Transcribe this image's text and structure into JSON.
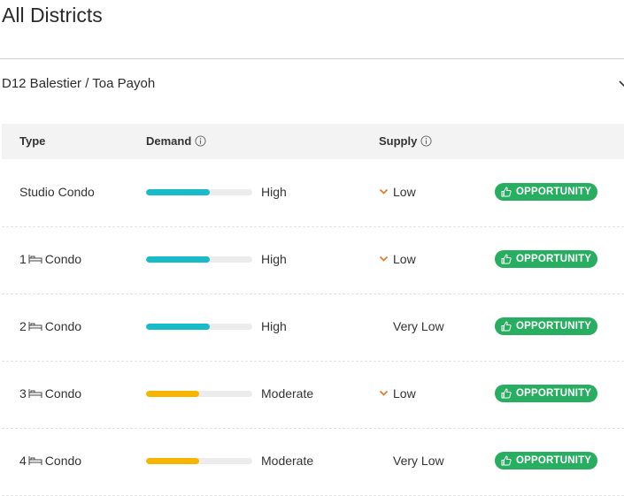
{
  "page": {
    "title": "All Districts"
  },
  "district": {
    "name": "D12 Balestier / Toa Payoh"
  },
  "table": {
    "headers": {
      "type": "Type",
      "demand": "Demand",
      "supply": "Supply"
    },
    "rows": [
      {
        "type_prefix": "",
        "type_label": "Studio Condo",
        "bed_icon": false,
        "demand_level": 0.6,
        "demand_color": "#18bcc8",
        "demand_label": "High",
        "supply_arrow": true,
        "supply_label": "Low",
        "badge": "OPPORTUNITY"
      },
      {
        "type_prefix": "1",
        "type_label": "Condo",
        "bed_icon": true,
        "demand_level": 0.6,
        "demand_color": "#18bcc8",
        "demand_label": "High",
        "supply_arrow": true,
        "supply_label": "Low",
        "badge": "OPPORTUNITY"
      },
      {
        "type_prefix": "2",
        "type_label": "Condo",
        "bed_icon": true,
        "demand_level": 0.6,
        "demand_color": "#18bcc8",
        "demand_label": "High",
        "supply_arrow": false,
        "supply_label": "Very Low",
        "badge": "OPPORTUNITY"
      },
      {
        "type_prefix": "3",
        "type_label": "Condo",
        "bed_icon": true,
        "demand_level": 0.5,
        "demand_color": "#f7b500",
        "demand_label": "Moderate",
        "supply_arrow": true,
        "supply_label": "Low",
        "badge": "OPPORTUNITY"
      },
      {
        "type_prefix": "4",
        "type_label": "Condo",
        "bed_icon": true,
        "demand_level": 0.5,
        "demand_color": "#f7b500",
        "demand_label": "Moderate",
        "supply_arrow": false,
        "supply_label": "Very Low",
        "badge": "OPPORTUNITY"
      }
    ]
  },
  "colors": {
    "badge": "#27ae60",
    "supply_arrow": "#e8741c",
    "bar_track": "#ececec"
  },
  "icons": {
    "info": "info-icon",
    "bed": "bed-icon",
    "thumb": "thumbs-up-icon",
    "chevron": "chevron-down-icon",
    "arrow": "chevron-down-icon"
  }
}
